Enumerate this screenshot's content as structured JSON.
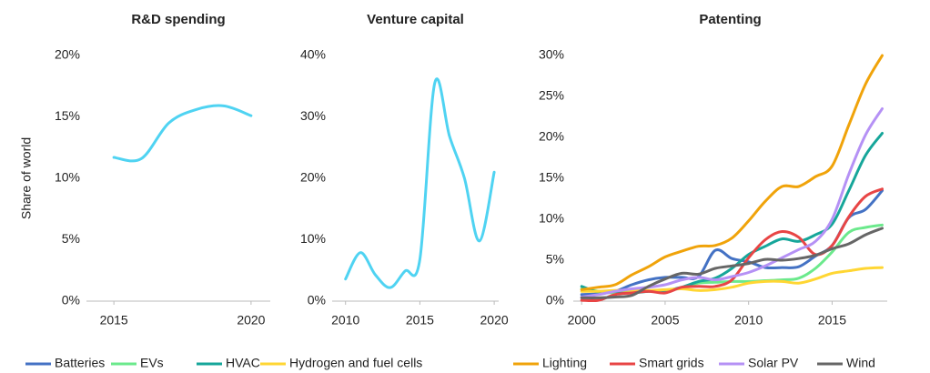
{
  "chart_data": [
    {
      "type": "line",
      "title": "R&D spending",
      "y_label": "Share of world",
      "x": [
        2015,
        2016,
        2017,
        2018,
        2019,
        2020
      ],
      "series": [
        {
          "name": null,
          "color": "#4fd3f2",
          "values": [
            11.7,
            11.6,
            14.5,
            15.6,
            15.9,
            15.1
          ]
        }
      ],
      "xlim": [
        2014,
        2020.7
      ],
      "xticks": [
        2015,
        2020
      ],
      "ylim": [
        0,
        20
      ],
      "yticks": [
        {
          "value": 0,
          "label": "0%"
        },
        {
          "value": 5,
          "label": "5%"
        },
        {
          "value": 10,
          "label": "10%"
        },
        {
          "value": 15,
          "label": "15%"
        },
        {
          "value": 20,
          "label": "20%"
        }
      ]
    },
    {
      "type": "line",
      "title": "Venture capital",
      "x": [
        2010,
        2011,
        2012,
        2013,
        2014,
        2015,
        2016,
        2017,
        2018,
        2019,
        2020
      ],
      "series": [
        {
          "name": null,
          "color": "#4fd3f2",
          "values": [
            3.6,
            7.9,
            4.3,
            2.2,
            4.9,
            6.8,
            35.5,
            26.8,
            20,
            9.8,
            21
          ]
        }
      ],
      "xlim": [
        2009.1,
        2020.3
      ],
      "xticks": [
        2010,
        2015,
        2020
      ],
      "ylim": [
        0,
        40
      ],
      "yticks": [
        {
          "value": 0,
          "label": "0%"
        },
        {
          "value": 10,
          "label": "10%"
        },
        {
          "value": 20,
          "label": "20%"
        },
        {
          "value": 30,
          "label": "30%"
        },
        {
          "value": 40,
          "label": "40%"
        }
      ]
    },
    {
      "type": "line",
      "title": "Patenting",
      "x": [
        2000,
        2001,
        2002,
        2003,
        2004,
        2005,
        2006,
        2007,
        2008,
        2009,
        2010,
        2011,
        2012,
        2013,
        2014,
        2015,
        2016,
        2017,
        2018
      ],
      "series": [
        {
          "name": "Batteries",
          "color": "#4472c4",
          "values": [
            0.8,
            0.9,
            1.2,
            2.0,
            2.6,
            2.9,
            2.9,
            3.0,
            6.2,
            5.2,
            4.8,
            4.1,
            4.1,
            4.2,
            5.5,
            6.8,
            10.2,
            11.2,
            13.5
          ]
        },
        {
          "name": "EVs",
          "color": "#6be98c",
          "values": [
            1.5,
            1.2,
            1.0,
            1.1,
            1.2,
            1.3,
            1.6,
            2.2,
            2.3,
            2.4,
            2.4,
            2.5,
            2.6,
            2.8,
            4.0,
            6.0,
            8.4,
            9.0,
            9.3
          ]
        },
        {
          "name": "HVAC",
          "color": "#16a69a",
          "values": [
            1.8,
            1.1,
            1.2,
            1.0,
            1.2,
            1.3,
            1.7,
            2.4,
            2.8,
            4.0,
            5.7,
            6.7,
            7.6,
            7.3,
            8.1,
            9.4,
            13.5,
            17.8,
            20.5
          ]
        },
        {
          "name": "Hydrogen and fuel cells",
          "color": "#ffd633",
          "values": [
            1.2,
            1.2,
            1.3,
            1.3,
            1.3,
            1.4,
            1.5,
            1.3,
            1.4,
            1.7,
            2.2,
            2.4,
            2.4,
            2.2,
            2.7,
            3.4,
            3.7,
            4.0,
            4.1
          ]
        },
        {
          "name": "Lighting",
          "color": "#f0a30a",
          "values": [
            1.4,
            1.7,
            2.0,
            3.2,
            4.2,
            5.4,
            6.1,
            6.7,
            6.8,
            7.7,
            9.8,
            12.2,
            14.0,
            14.0,
            15.2,
            16.5,
            21.5,
            26.5,
            30.0
          ]
        },
        {
          "name": "Smart grids",
          "color": "#e84545",
          "values": [
            0.1,
            0.1,
            0.8,
            1.0,
            1.2,
            1.0,
            1.7,
            1.8,
            1.8,
            2.6,
            5.3,
            7.5,
            8.5,
            7.8,
            5.7,
            6.8,
            10.3,
            12.8,
            13.7
          ]
        },
        {
          "name": "Solar PV",
          "color": "#b591f5",
          "values": [
            0.5,
            0.8,
            1.2,
            1.5,
            1.7,
            2.0,
            2.6,
            2.9,
            2.6,
            3.0,
            3.5,
            4.3,
            5.3,
            6.3,
            7.3,
            10.0,
            15.5,
            20.3,
            23.5
          ]
        },
        {
          "name": "Wind",
          "color": "#666666",
          "values": [
            0.4,
            0.4,
            0.5,
            0.7,
            1.8,
            2.7,
            3.4,
            3.3,
            4.0,
            4.3,
            4.6,
            5.1,
            5.0,
            5.2,
            5.6,
            6.4,
            7.0,
            8.1,
            8.9
          ]
        }
      ],
      "xlim": [
        1999.5,
        2018.3
      ],
      "xticks": [
        2000,
        2005,
        2010,
        2015
      ],
      "ylim": [
        0,
        30
      ],
      "yticks": [
        {
          "value": 0,
          "label": "0%"
        },
        {
          "value": 5,
          "label": "5%"
        },
        {
          "value": 10,
          "label": "10%"
        },
        {
          "value": 15,
          "label": "15%"
        },
        {
          "value": 20,
          "label": "20%"
        },
        {
          "value": 25,
          "label": "25%"
        },
        {
          "value": 30,
          "label": "30%"
        }
      ],
      "legend": "bottom"
    }
  ]
}
